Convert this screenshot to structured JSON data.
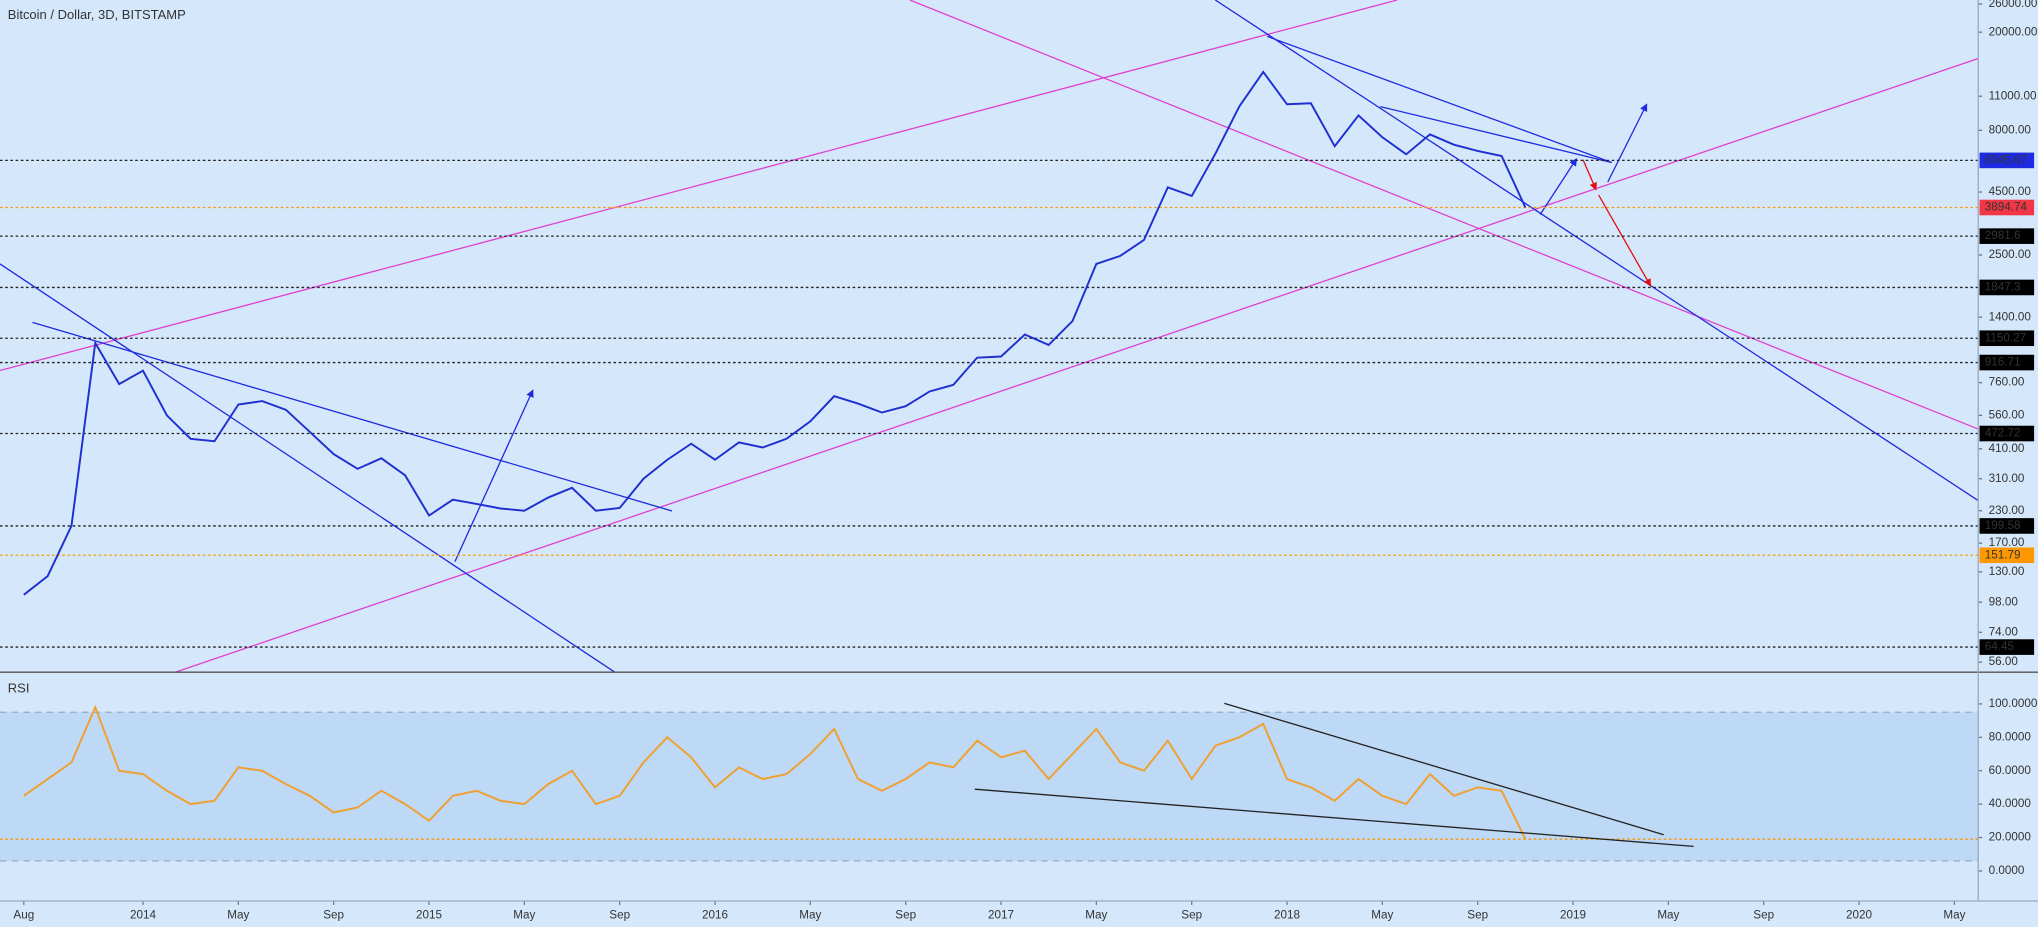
{
  "chart_data": [
    {
      "type": "line",
      "title": "Bitcoin / Dollar, 3D, BITSTAMP",
      "log_scale": true,
      "color": "#1f2fd0",
      "xlim": [
        "2013-07",
        "2020-06"
      ],
      "ylim": [
        51,
        27000
      ],
      "x": [
        "2013-08",
        "2013-09",
        "2013-10",
        "2013-11",
        "2013-12",
        "2014-01",
        "2014-02",
        "2014-03",
        "2014-04",
        "2014-05",
        "2014-06",
        "2014-07",
        "2014-08",
        "2014-09",
        "2014-10",
        "2014-11",
        "2014-12",
        "2015-01",
        "2015-02",
        "2015-03",
        "2015-04",
        "2015-05",
        "2015-06",
        "2015-07",
        "2015-08",
        "2015-09",
        "2015-10",
        "2015-11",
        "2015-12",
        "2016-01",
        "2016-02",
        "2016-03",
        "2016-04",
        "2016-05",
        "2016-06",
        "2016-07",
        "2016-08",
        "2016-09",
        "2016-10",
        "2016-11",
        "2016-12",
        "2017-01",
        "2017-02",
        "2017-03",
        "2017-04",
        "2017-05",
        "2017-06",
        "2017-07",
        "2017-08",
        "2017-09",
        "2017-10",
        "2017-11",
        "2017-12",
        "2018-01",
        "2018-02",
        "2018-03",
        "2018-04",
        "2018-05",
        "2018-06",
        "2018-07",
        "2018-08",
        "2018-09",
        "2018-10",
        "2018-11"
      ],
      "values": [
        105,
        125,
        200,
        1100,
        750,
        850,
        560,
        450,
        440,
        620,
        640,
        590,
        480,
        390,
        340,
        375,
        320,
        220,
        255,
        245,
        235,
        230,
        260,
        285,
        230,
        236,
        310,
        370,
        430,
        370,
        435,
        415,
        450,
        530,
        670,
        625,
        575,
        610,
        700,
        745,
        960,
        970,
        1190,
        1080,
        1350,
        2300,
        2480,
        2880,
        4700,
        4340,
        6450,
        10000,
        13800,
        10200,
        10300,
        6900,
        9200,
        7500,
        6400,
        7700,
        7000,
        6600,
        6300,
        3894.74
      ],
      "yticks": [
        {
          "value": 26000,
          "label": "26000.00"
        },
        {
          "value": 20000,
          "label": "20000.00"
        },
        {
          "value": 11000,
          "label": "11000.00"
        },
        {
          "value": 8000,
          "label": "8000.00"
        },
        {
          "value": 4500,
          "label": "4500.00"
        },
        {
          "value": 2500,
          "label": "2500.00"
        },
        {
          "value": 1400,
          "label": "1400.00"
        },
        {
          "value": 760,
          "label": "760.00"
        },
        {
          "value": 560,
          "label": "560.00"
        },
        {
          "value": 410,
          "label": "410.00"
        },
        {
          "value": 310,
          "label": "310.00"
        },
        {
          "value": 230,
          "label": "230.00"
        },
        {
          "value": 170,
          "label": "170.00"
        },
        {
          "value": 130,
          "label": "130.00"
        },
        {
          "value": 98,
          "label": "98.00"
        },
        {
          "value": 74,
          "label": "74.00"
        },
        {
          "value": 56,
          "label": "56.00"
        }
      ],
      "levels": [
        {
          "value": 6045.67,
          "color": "#1e2be0",
          "line_color": "#222222"
        },
        {
          "value": 3894.74,
          "color": "#f23645",
          "line_color": "#ff9800"
        },
        {
          "value": 2981.6,
          "color": "#000000",
          "line_color": "#222222"
        },
        {
          "value": 1847.3,
          "color": "#000000",
          "line_color": "#222222"
        },
        {
          "value": 1150.27,
          "color": "#000000",
          "line_color": "#222222"
        },
        {
          "value": 916.71,
          "color": "#000000",
          "line_color": "#222222"
        },
        {
          "value": 472.72,
          "color": "#000000",
          "line_color": "#222222"
        },
        {
          "value": 199.58,
          "color": "#000000",
          "line_color": "#222222"
        },
        {
          "value": 151.79,
          "color": "#ff9800",
          "line_color": "#ff9800"
        },
        {
          "value": 64.45,
          "color": "#000000",
          "line_color": "#222222"
        }
      ]
    },
    {
      "type": "line",
      "title": "RSI",
      "color": "#f0a030",
      "xlim": [
        "2013-07",
        "2020-06"
      ],
      "ylim": [
        -18,
        119
      ],
      "x": [
        "2013-08",
        "2013-09",
        "2013-10",
        "2013-11",
        "2013-12",
        "2014-01",
        "2014-02",
        "2014-03",
        "2014-04",
        "2014-05",
        "2014-06",
        "2014-07",
        "2014-08",
        "2014-09",
        "2014-10",
        "2014-11",
        "2014-12",
        "2015-01",
        "2015-02",
        "2015-03",
        "2015-04",
        "2015-05",
        "2015-06",
        "2015-07",
        "2015-08",
        "2015-09",
        "2015-10",
        "2015-11",
        "2015-12",
        "2016-01",
        "2016-02",
        "2016-03",
        "2016-04",
        "2016-05",
        "2016-06",
        "2016-07",
        "2016-08",
        "2016-09",
        "2016-10",
        "2016-11",
        "2016-12",
        "2017-01",
        "2017-02",
        "2017-03",
        "2017-04",
        "2017-05",
        "2017-06",
        "2017-07",
        "2017-08",
        "2017-09",
        "2017-10",
        "2017-11",
        "2017-12",
        "2018-01",
        "2018-02",
        "2018-03",
        "2018-04",
        "2018-05",
        "2018-06",
        "2018-07",
        "2018-08",
        "2018-09",
        "2018-10",
        "2018-11"
      ],
      "values": [
        45,
        55,
        65,
        98,
        60,
        58,
        48,
        40,
        42,
        62,
        60,
        52,
        45,
        35,
        38,
        48,
        40,
        30,
        45,
        48,
        42,
        40,
        52,
        60,
        40,
        45,
        65,
        80,
        68,
        50,
        62,
        55,
        58,
        70,
        85,
        55,
        48,
        55,
        65,
        62,
        78,
        68,
        72,
        55,
        70,
        85,
        65,
        60,
        78,
        55,
        75,
        80,
        88,
        55,
        50,
        42,
        55,
        45,
        40,
        58,
        45,
        50,
        48,
        19
      ],
      "band": [
        95,
        6
      ],
      "level": 19,
      "yticks": [
        {
          "value": 100,
          "label": "100.0000"
        },
        {
          "value": 80,
          "label": "80.0000"
        },
        {
          "value": 60,
          "label": "60.0000"
        },
        {
          "value": 40,
          "label": "40.0000"
        },
        {
          "value": 20,
          "label": "20.0000"
        },
        {
          "value": 0,
          "label": "0.0000"
        }
      ],
      "xticks": [
        {
          "value": "2013-08",
          "label": "Aug"
        },
        {
          "value": "2014-01",
          "label": "2014"
        },
        {
          "value": "2014-05",
          "label": "May"
        },
        {
          "value": "2014-09",
          "label": "Sep"
        },
        {
          "value": "2015-01",
          "label": "2015"
        },
        {
          "value": "2015-05",
          "label": "May"
        },
        {
          "value": "2015-09",
          "label": "Sep"
        },
        {
          "value": "2016-01",
          "label": "2016"
        },
        {
          "value": "2016-05",
          "label": "May"
        },
        {
          "value": "2016-09",
          "label": "Sep"
        },
        {
          "value": "2017-01",
          "label": "2017"
        },
        {
          "value": "2017-05",
          "label": "May"
        },
        {
          "value": "2017-09",
          "label": "Sep"
        },
        {
          "value": "2018-01",
          "label": "2018"
        },
        {
          "value": "2018-05",
          "label": "May"
        },
        {
          "value": "2018-09",
          "label": "Sep"
        },
        {
          "value": "2019-01",
          "label": "2019"
        },
        {
          "value": "2019-05",
          "label": "May"
        },
        {
          "value": "2019-09",
          "label": "Sep"
        },
        {
          "value": "2020-01",
          "label": "2020"
        },
        {
          "value": "2020-05",
          "label": "May"
        }
      ]
    }
  ]
}
